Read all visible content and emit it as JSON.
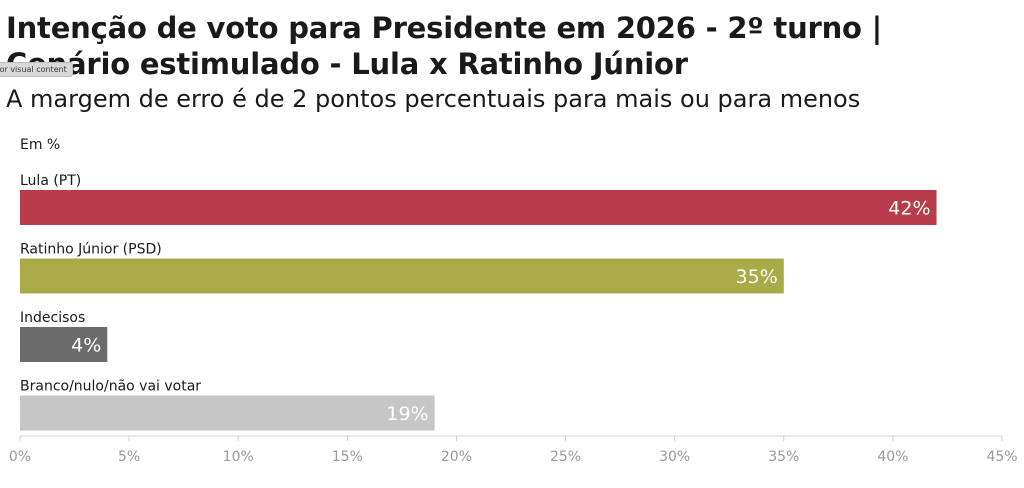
{
  "header": {
    "title": "Intenção de voto para Presidente em 2026 - 2º turno | Cenário estimulado - Lula x Ratinho Júnior",
    "subtitle": "A margem de erro é de 2 pontos percentuais para mais ou para menos",
    "tooltip": "Image or visual content"
  },
  "chart_data": {
    "type": "bar",
    "orientation": "horizontal",
    "unit_label": "Em %",
    "categories": [
      "Lula (PT)",
      "Ratinho Júnior (PSD)",
      "Indecisos",
      "Branco/nulo/não vai votar"
    ],
    "values": [
      42,
      35,
      4,
      19
    ],
    "value_labels": [
      "42%",
      "35%",
      "4%",
      "19%"
    ],
    "colors": [
      "#b83c49",
      "#a9aa48",
      "#6b6b6b",
      "#c6c6c6"
    ],
    "xlim": [
      0,
      45
    ],
    "ticks": [
      0,
      5,
      10,
      15,
      20,
      25,
      30,
      35,
      40,
      45
    ],
    "tick_labels": [
      "0%",
      "5%",
      "10%",
      "15%",
      "20%",
      "25%",
      "30%",
      "35%",
      "40%",
      "45%"
    ],
    "grid": false
  }
}
